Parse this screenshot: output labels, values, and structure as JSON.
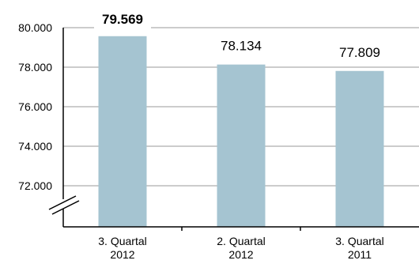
{
  "chart_data": {
    "type": "bar",
    "categories": [
      [
        "3. Quartal",
        "2012"
      ],
      [
        "2. Quartal",
        "2012"
      ],
      [
        "3. Quartal",
        "2011"
      ]
    ],
    "values": [
      79569,
      78134,
      77809
    ],
    "value_labels": [
      "79.569",
      "78.134",
      "77.809"
    ],
    "highlight_index": 0,
    "yticks": [
      {
        "value": 72000,
        "label": "72.000"
      },
      {
        "value": 74000,
        "label": "74.000"
      },
      {
        "value": 76000,
        "label": "76.000"
      },
      {
        "value": 78000,
        "label": "78.000"
      },
      {
        "value": 80000,
        "label": "80.000"
      }
    ],
    "ylim": [
      72000,
      80000
    ],
    "axis_break": true,
    "grid": true,
    "title": "",
    "xlabel": "",
    "ylabel": "",
    "colors": {
      "bar": "#a5c4d1",
      "grid": "#999999",
      "axis": "#000000"
    }
  }
}
